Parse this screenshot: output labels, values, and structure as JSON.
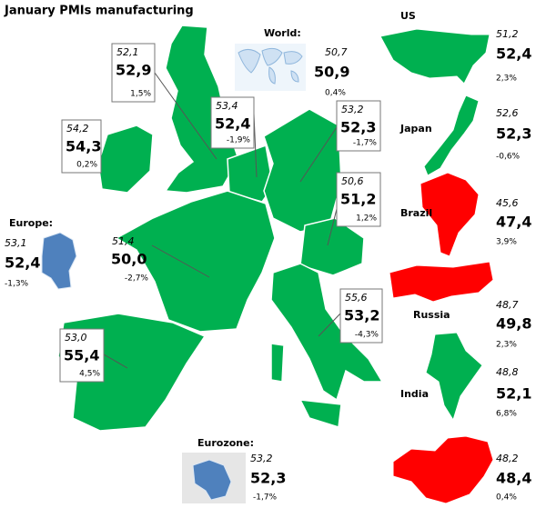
{
  "title": "January PMIs manufacturing",
  "world": {
    "label": "World:",
    "prev": "50,7",
    "value": "50,9",
    "change": "0,4%"
  },
  "europe": {
    "label": "Europe:",
    "prev": "53,1",
    "value": "52,4",
    "change": "-1,3%",
    "change_color": "#ff0000"
  },
  "eurozone": {
    "label": "Eurozone:",
    "prev": "53,2",
    "value": "52,3",
    "change": "-1,7%",
    "change_color": "#ff0000"
  },
  "map_boxes": [
    {
      "prev": "52,1",
      "value": "52,9",
      "change": "1,5%"
    },
    {
      "prev": "54,2",
      "value": "54,3",
      "change": "0,2%"
    },
    {
      "prev": "53,4",
      "value": "52,4",
      "change": "-1,9%",
      "change_color": "#ff0000"
    },
    {
      "prev": "53,2",
      "value": "52,3",
      "change": "-1,7%",
      "change_color": "#ff0000"
    },
    {
      "prev": "50,6",
      "value": "51,2",
      "change": "1,2%"
    },
    {
      "prev": "51,4",
      "value": "50,0",
      "change": "-2,7%",
      "change_color": "#ff0000"
    },
    {
      "prev": "53,0",
      "value": "55,4",
      "change": "4,5%"
    },
    {
      "prev": "55,6",
      "value": "53,2",
      "change": "-4,3%",
      "change_color": "#ff0000"
    }
  ],
  "countries": [
    {
      "name": "US",
      "prev": "51,2",
      "value": "52,4",
      "change": "2,3%",
      "shape_color": "#00b050"
    },
    {
      "name": "Japan",
      "prev": "52,6",
      "value": "52,3",
      "change": "-0,6%",
      "change_color": "#ff0000",
      "shape_color": "#00b050"
    },
    {
      "name": "Brazil",
      "prev": "45,6",
      "value": "47,4",
      "change": "3,9%",
      "prev_color": "#ff0000",
      "value_color": "#ff0000",
      "shape_color": "#ff0000"
    },
    {
      "name": "Russia",
      "prev": "48,7",
      "value": "49,8",
      "change": "2,3%",
      "prev_color": "#ff0000",
      "value_color": "#ff0000",
      "shape_color": "#ff0000"
    },
    {
      "name": "India",
      "prev": "48,8",
      "value": "52,1",
      "change": "6,8%",
      "prev_color": "#ff0000",
      "shape_color": "#00b050"
    },
    {
      "prev": "48,2",
      "value": "48,4",
      "change": "0,4%",
      "prev_color": "#ff0000",
      "value_color": "#ff0000",
      "shape_color": "#ff0000"
    }
  ]
}
